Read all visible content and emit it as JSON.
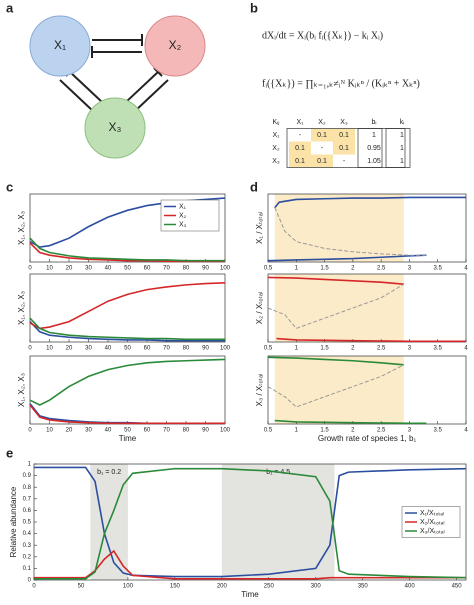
{
  "panel_labels": [
    "a",
    "b",
    "c",
    "d",
    "e"
  ],
  "diagram": {
    "nodes": [
      {
        "label": "X₁"
      },
      {
        "label": "X₂"
      },
      {
        "label": "X₃"
      }
    ]
  },
  "equations": [
    "dXᵢ/dt = Xᵢ(bᵢ fᵢ({Xₖ}) − kᵢ Xᵢ)",
    "fᵢ({Xₖ}) = ∏ₖ₌₁,ₖ≠ᵢᴺ Kᵢₖⁿ / (Kᵢₖⁿ + Xₖⁿ)"
  ],
  "table": {
    "header": [
      "Kᵢⱼ",
      "X₁",
      "X₂",
      "X₃",
      "bᵢ",
      "kᵢ"
    ],
    "rows": [
      [
        "X₁",
        "-",
        0.1,
        0.1,
        1,
        1
      ],
      [
        "X₂",
        0.1,
        "-",
        0.1,
        0.95,
        1
      ],
      [
        "X₃",
        0.1,
        0.1,
        "-",
        1.05,
        1
      ]
    ]
  },
  "chart_data": [
    {
      "type": "line",
      "y_label": "X₁, X₂, X₃",
      "x": [
        0,
        5,
        10,
        20,
        30,
        40,
        50,
        60,
        70,
        80,
        90,
        100
      ],
      "xlim": [
        0,
        100
      ],
      "ylim": [
        0,
        1
      ],
      "xticks": [
        0,
        10,
        20,
        30,
        40,
        50,
        60,
        70,
        80,
        90,
        100
      ],
      "legend": "upper right",
      "series": [
        {
          "name": "X₁",
          "color": "#2b4ea0",
          "values": [
            0.3,
            0.22,
            0.24,
            0.35,
            0.52,
            0.66,
            0.76,
            0.83,
            0.87,
            0.9,
            0.92,
            0.94
          ]
        },
        {
          "name": "X₂",
          "color": "#d62728",
          "values": [
            0.28,
            0.14,
            0.1,
            0.06,
            0.04,
            0.03,
            0.02,
            0.02,
            0.01,
            0.01,
            0.01,
            0.01
          ]
        },
        {
          "name": "X₃",
          "color": "#2a8a3a",
          "values": [
            0.35,
            0.2,
            0.14,
            0.09,
            0.06,
            0.05,
            0.04,
            0.03,
            0.03,
            0.02,
            0.02,
            0.02
          ]
        }
      ]
    },
    {
      "type": "line",
      "y_label": "X₁, X₂, X₃",
      "x": [
        0,
        5,
        10,
        20,
        30,
        40,
        50,
        60,
        70,
        80,
        90,
        100
      ],
      "xlim": [
        0,
        100
      ],
      "ylim": [
        0,
        1
      ],
      "xticks": [
        0,
        10,
        20,
        30,
        40,
        50,
        60,
        70,
        80,
        90,
        100
      ],
      "series": [
        {
          "color": "#2b4ea0",
          "values": [
            0.3,
            0.15,
            0.1,
            0.07,
            0.05,
            0.04,
            0.03,
            0.03,
            0.02,
            0.02,
            0.02,
            0.02
          ]
        },
        {
          "color": "#d62728",
          "values": [
            0.28,
            0.2,
            0.22,
            0.3,
            0.45,
            0.6,
            0.7,
            0.77,
            0.81,
            0.84,
            0.86,
            0.87
          ]
        },
        {
          "color": "#2a8a3a",
          "values": [
            0.35,
            0.2,
            0.14,
            0.1,
            0.08,
            0.07,
            0.06,
            0.05,
            0.05,
            0.04,
            0.04,
            0.04
          ]
        }
      ]
    },
    {
      "type": "line",
      "y_label": "X₁, X₂, X₃",
      "x_label": "Time",
      "x": [
        0,
        5,
        10,
        20,
        30,
        40,
        50,
        60,
        70,
        80,
        90,
        100
      ],
      "xlim": [
        0,
        100
      ],
      "ylim": [
        0,
        1
      ],
      "xticks": [
        0,
        10,
        20,
        30,
        40,
        50,
        60,
        70,
        80,
        90,
        100
      ],
      "series": [
        {
          "color": "#2b4ea0",
          "values": [
            0.3,
            0.12,
            0.08,
            0.05,
            0.03,
            0.02,
            0.02,
            0.01,
            0.01,
            0.01,
            0.01,
            0.01
          ]
        },
        {
          "color": "#d62728",
          "values": [
            0.28,
            0.1,
            0.06,
            0.03,
            0.02,
            0.01,
            0.01,
            0.01,
            0.01,
            0.01,
            0.01,
            0.01
          ]
        },
        {
          "color": "#2a8a3a",
          "values": [
            0.35,
            0.28,
            0.35,
            0.55,
            0.7,
            0.8,
            0.86,
            0.9,
            0.92,
            0.93,
            0.94,
            0.95
          ]
        }
      ]
    },
    {
      "type": "line",
      "y_label": "X₁ / Xₜₒₜₐₗ",
      "xlim": [
        0.5,
        4
      ],
      "ylim": [
        0,
        1
      ],
      "xticks": [
        0.5,
        1,
        1.5,
        2,
        2.5,
        3,
        3.5,
        4
      ],
      "shaded_regions": [
        {
          "x": [
            0.62,
            2.9
          ]
        }
      ],
      "series": [
        {
          "color": "#2b4ea0",
          "x": [
            0.62,
            0.7,
            1,
            1.5,
            2,
            2.5,
            3,
            3.5,
            4
          ],
          "values": [
            0.8,
            0.88,
            0.92,
            0.93,
            0.94,
            0.94,
            0.95,
            0.95,
            0.95
          ]
        },
        {
          "color": "#2b4ea0",
          "x": [
            0.5,
            1,
            1.5,
            2,
            2.5,
            3,
            3.3
          ],
          "values": [
            0.02,
            0.03,
            0.04,
            0.05,
            0.07,
            0.09,
            0.1
          ]
        },
        {
          "color": "#999999",
          "style": "dashed",
          "x": [
            0.62,
            0.8,
            1,
            1.5,
            2,
            2.5,
            3,
            3.3
          ],
          "values": [
            0.8,
            0.45,
            0.3,
            0.2,
            0.15,
            0.12,
            0.1,
            0.1
          ]
        }
      ]
    },
    {
      "type": "line",
      "y_label": "X₂ / Xₜₒₜₐₗ",
      "xlim": [
        0.5,
        4
      ],
      "ylim": [
        0,
        1
      ],
      "xticks": [
        0.5,
        1,
        1.5,
        2,
        2.5,
        3,
        3.5,
        4
      ],
      "shaded_regions": [
        {
          "x": [
            0.62,
            2.9
          ]
        }
      ],
      "series": [
        {
          "color": "#d62728",
          "x": [
            0.5,
            1,
            1.5,
            2,
            2.5,
            2.9
          ],
          "values": [
            0.95,
            0.94,
            0.92,
            0.9,
            0.88,
            0.85
          ]
        },
        {
          "color": "#d62728",
          "x": [
            0.65,
            1,
            2,
            3,
            4
          ],
          "values": [
            0.05,
            0.03,
            0.02,
            0.01,
            0.01
          ]
        },
        {
          "color": "#999999",
          "style": "dashed",
          "x": [
            0.5,
            0.8,
            1,
            1.5,
            2,
            2.5,
            2.9
          ],
          "values": [
            0.5,
            0.4,
            0.2,
            0.35,
            0.5,
            0.65,
            0.85
          ]
        }
      ]
    },
    {
      "type": "line",
      "y_label": "X₃ / Xₜₒₜₐₗ",
      "x_label": "Growth rate of species 1, b₁",
      "xlim": [
        0.5,
        4
      ],
      "ylim": [
        0,
        1
      ],
      "xticks": [
        0.5,
        1,
        1.5,
        2,
        2.5,
        3,
        3.5,
        4
      ],
      "shaded_regions": [
        {
          "x": [
            0.62,
            2.9
          ]
        }
      ],
      "series": [
        {
          "color": "#2a8a3a",
          "x": [
            0.5,
            1,
            1.5,
            2,
            2.5,
            2.9
          ],
          "values": [
            0.98,
            0.97,
            0.95,
            0.93,
            0.9,
            0.87
          ]
        },
        {
          "color": "#2a8a3a",
          "x": [
            0.62,
            1,
            2,
            3,
            3.3
          ],
          "values": [
            0.05,
            0.03,
            0.02,
            0.01,
            0.01
          ]
        },
        {
          "color": "#999999",
          "style": "dashed",
          "x": [
            0.5,
            0.8,
            1,
            1.5,
            2,
            2.5,
            2.9
          ],
          "values": [
            0.55,
            0.4,
            0.25,
            0.4,
            0.55,
            0.7,
            0.87
          ]
        }
      ]
    },
    {
      "type": "line",
      "y_label": "Relative abundance",
      "x_label": "Time",
      "x": [
        0,
        55,
        65,
        75,
        85,
        95,
        105,
        150,
        200,
        250,
        300,
        315,
        325,
        335,
        400,
        460
      ],
      "xlim": [
        0,
        460
      ],
      "ylim": [
        0,
        1
      ],
      "xticks": [
        0,
        50,
        100,
        150,
        200,
        250,
        300,
        350,
        400,
        450
      ],
      "yticks": [
        0,
        0.1,
        0.2,
        0.3,
        0.4,
        0.5,
        0.6,
        0.7,
        0.8,
        0.9,
        1
      ],
      "legend": "center right",
      "shaded_regions": [
        {
          "x": [
            60,
            100
          ],
          "label": "b₁ = 0.2"
        },
        {
          "x": [
            200,
            320
          ],
          "label": "b₁ = 4.5"
        }
      ],
      "series": [
        {
          "name": "X₁/Xₜₒₜₐₗ",
          "color": "#2b4ea0",
          "values": [
            0.97,
            0.97,
            0.85,
            0.4,
            0.15,
            0.06,
            0.04,
            0.03,
            0.03,
            0.05,
            0.1,
            0.3,
            0.9,
            0.93,
            0.95,
            0.96
          ]
        },
        {
          "name": "X₂/Xₜₒₜₐₗ",
          "color": "#d62728",
          "values": [
            0.02,
            0.02,
            0.08,
            0.18,
            0.25,
            0.12,
            0.04,
            0.01,
            0.01,
            0.01,
            0.01,
            0.02,
            0.02,
            0.02,
            0.02,
            0.02
          ]
        },
        {
          "name": "X₃/Xₜₒₜₐₗ",
          "color": "#2a8a3a",
          "values": [
            0.01,
            0.01,
            0.07,
            0.4,
            0.6,
            0.82,
            0.92,
            0.96,
            0.96,
            0.94,
            0.89,
            0.68,
            0.08,
            0.05,
            0.03,
            0.02
          ]
        }
      ]
    }
  ]
}
